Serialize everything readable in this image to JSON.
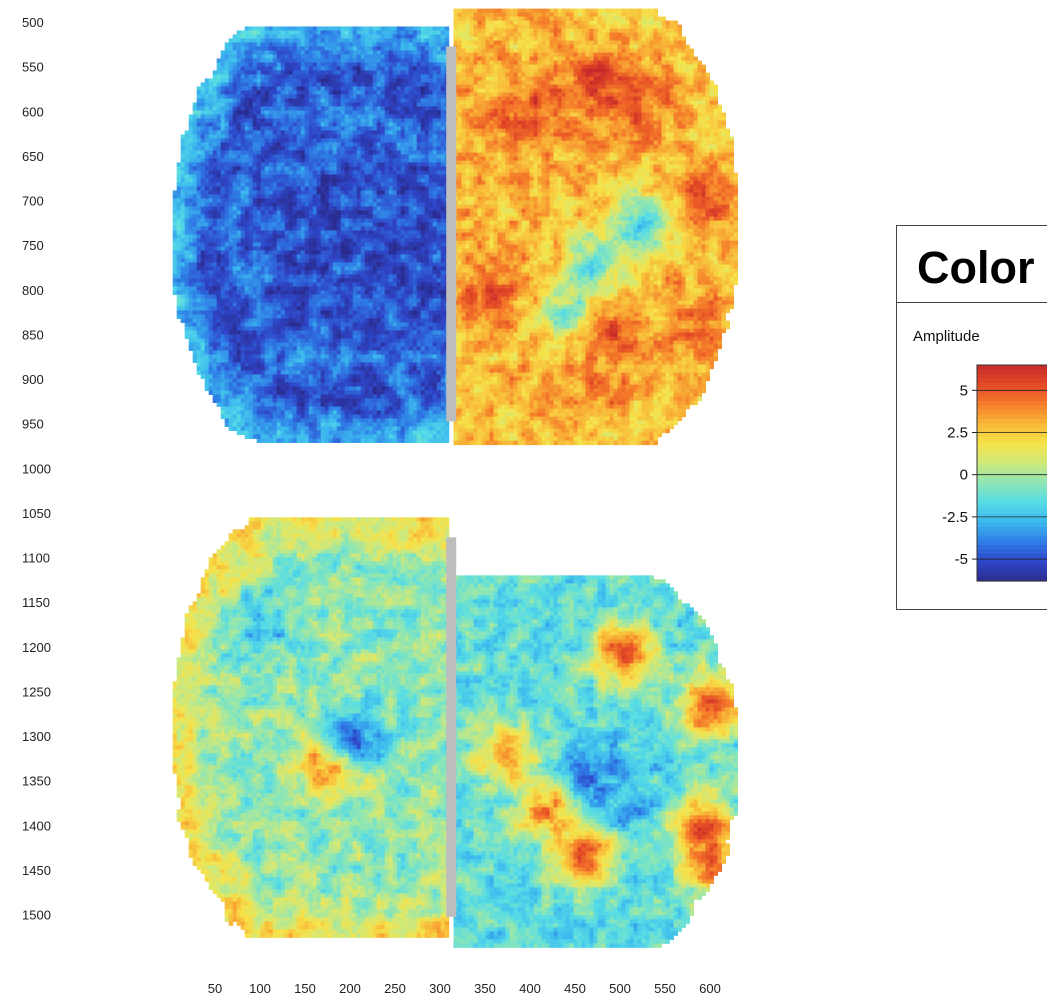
{
  "chart_data": {
    "type": "heatmap",
    "x_ticks": [
      50,
      100,
      150,
      200,
      250,
      300,
      350,
      400,
      450,
      500,
      550,
      600
    ],
    "y_ticks": [
      500,
      550,
      600,
      650,
      700,
      750,
      800,
      850,
      900,
      950,
      1000,
      1050,
      1100,
      1150,
      1200,
      1250,
      1300,
      1350,
      1400,
      1450,
      1500
    ],
    "panels": [
      {
        "name": "",
        "row": "top",
        "side": "left",
        "x_range": [
          3,
          308
        ],
        "y_range": [
          505,
          970
        ],
        "mean": -5.0,
        "rim": -2.5,
        "gap_values": [
          -1.5,
          -1.2,
          -1.8,
          -1.4,
          -1.6
        ]
      },
      {
        "name": "",
        "row": "top",
        "side": "right",
        "x_range": [
          315,
          630
        ],
        "y_range": [
          485,
          970
        ],
        "mean": 3.0,
        "rim": 2.5,
        "hotspots": [
          [
            395,
            600,
            5.5
          ],
          [
            470,
            570,
            6.0
          ],
          [
            520,
            590,
            5.0
          ],
          [
            600,
            700,
            5.0
          ],
          [
            350,
            800,
            5.0
          ],
          [
            480,
            840,
            5.5
          ],
          [
            590,
            850,
            4.5
          ],
          [
            480,
            910,
            4.0
          ]
        ],
        "coldspots": [
          [
            470,
            770,
            -1.0
          ],
          [
            520,
            730,
            -2.0
          ],
          [
            440,
            820,
            -0.5
          ]
        ]
      },
      {
        "name": "",
        "row": "bottom",
        "side": "left",
        "x_range": [
          3,
          308
        ],
        "y_range": [
          1055,
          1525
        ],
        "mean": -0.5,
        "rim": 2.0,
        "coldspots": [
          [
            100,
            1170,
            -2.5
          ],
          [
            200,
            1300,
            -4.5
          ]
        ],
        "hotspots": [
          [
            180,
            1325,
            6.0
          ]
        ]
      },
      {
        "name": "",
        "row": "bottom",
        "side": "right",
        "x_range": [
          315,
          630
        ],
        "y_range": [
          1120,
          1535
        ],
        "mean": -1.5,
        "rim": -1.5,
        "hotspots": [
          [
            500,
            1205,
            5.0
          ],
          [
            600,
            1265,
            5.5
          ],
          [
            370,
            1320,
            3.5
          ],
          [
            420,
            1380,
            4.0
          ],
          [
            460,
            1430,
            4.5
          ],
          [
            590,
            1400,
            5.0
          ],
          [
            600,
            1440,
            4.5
          ]
        ],
        "coldspots": [
          [
            470,
            1340,
            -4.0
          ],
          [
            510,
            1370,
            -3.0
          ]
        ]
      }
    ],
    "colorbar": {
      "title": "Color",
      "label": "Amplitude",
      "tick_values": [
        5,
        2.5,
        0,
        -2.5,
        -5
      ],
      "tick_labels": [
        "5",
        "2.5",
        "0",
        "-2.5",
        "-5"
      ],
      "range": [
        -6.3,
        6.5
      ],
      "colors": [
        "#2a2c8f",
        "#2f46c8",
        "#2f7de6",
        "#3cb8ee",
        "#56dce6",
        "#8ee6b4",
        "#cfe87a",
        "#f6e34a",
        "#f8b838",
        "#f57c2a",
        "#e34a26",
        "#c42a2a"
      ]
    },
    "grid": false,
    "legend_position": "right"
  }
}
